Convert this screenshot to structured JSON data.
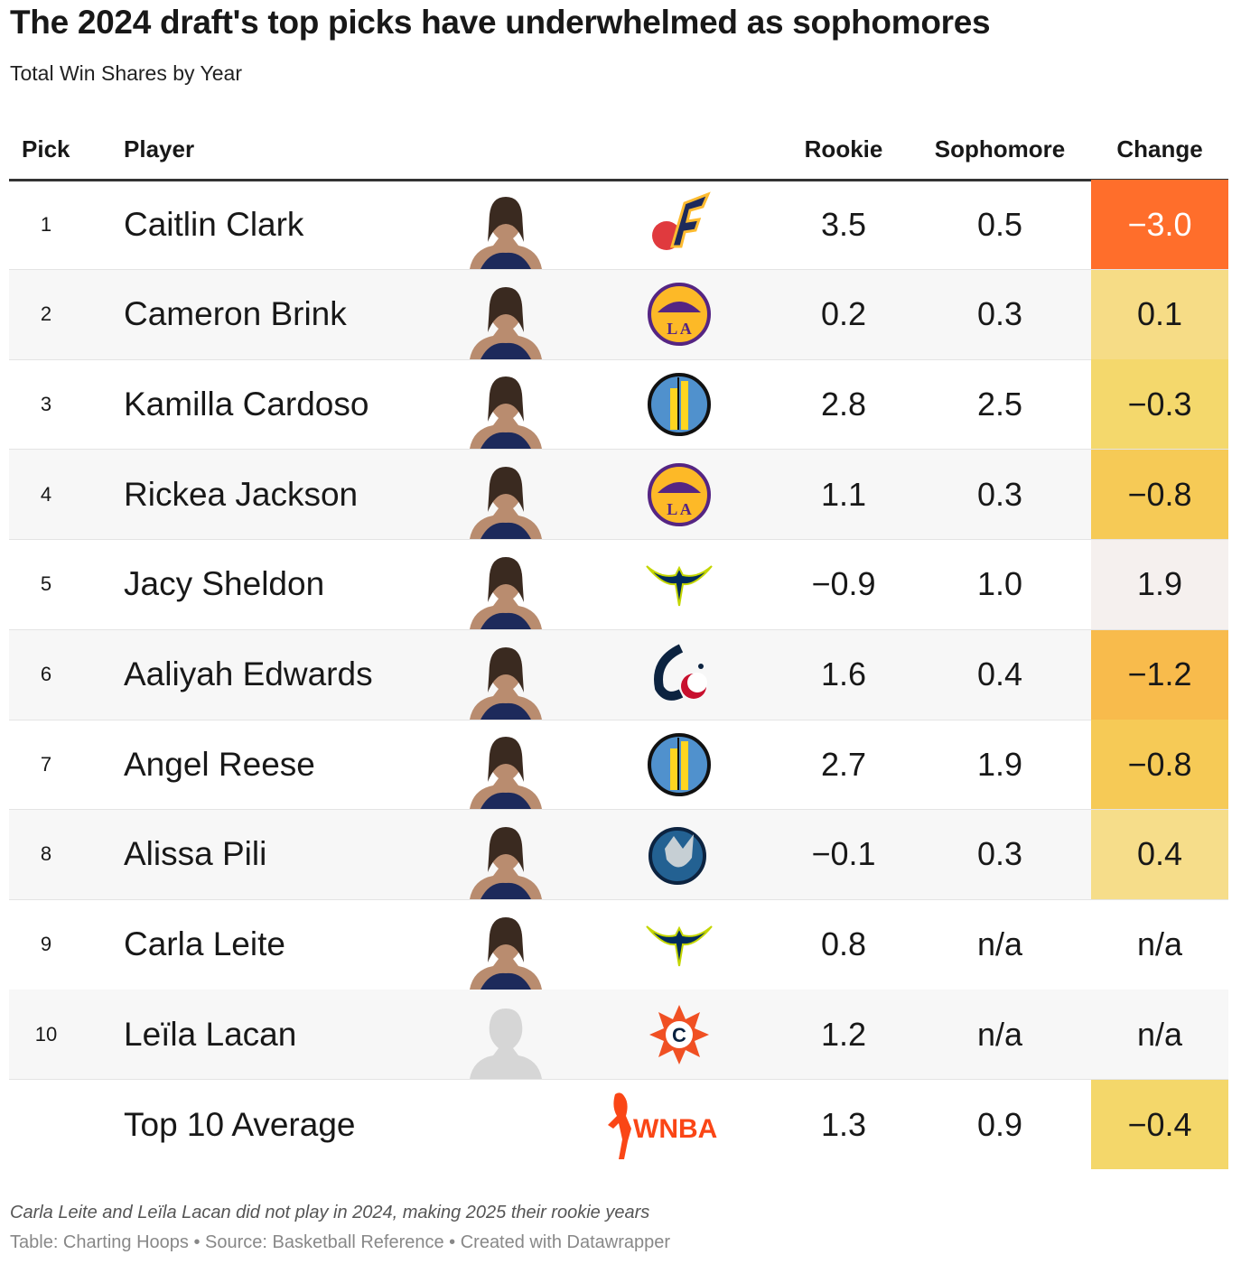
{
  "title": "The 2024 draft's top picks have underwhelmed as sophomores",
  "subtitle": "Total Win Shares by Year",
  "headers": {
    "pick": "Pick",
    "player": "Player",
    "rookie": "Rookie",
    "sophomore": "Sophomore",
    "change": "Change"
  },
  "chart_data": {
    "type": "table",
    "columns": [
      "Pick",
      "Player",
      "Rookie",
      "Sophomore",
      "Change"
    ],
    "rows": [
      {
        "pick": "1",
        "player": "Caitlin Clark",
        "team_logo": "indiana-fever-logo",
        "rookie": "3.5",
        "sophomore": "0.5",
        "change": "−3.0",
        "change_color": "#ff6e2b",
        "change_text_color": "#ffffff"
      },
      {
        "pick": "2",
        "player": "Cameron Brink",
        "team_logo": "los-angeles-sparks-logo",
        "rookie": "0.2",
        "sophomore": "0.3",
        "change": "0.1",
        "change_color": "#f6dc86",
        "change_text_color": "#181818"
      },
      {
        "pick": "3",
        "player": "Kamilla Cardoso",
        "team_logo": "chicago-sky-logo",
        "rookie": "2.8",
        "sophomore": "2.5",
        "change": "−0.3",
        "change_color": "#f4d86c",
        "change_text_color": "#181818"
      },
      {
        "pick": "4",
        "player": "Rickea Jackson",
        "team_logo": "los-angeles-sparks-logo",
        "rookie": "1.1",
        "sophomore": "0.3",
        "change": "−0.8",
        "change_color": "#f6ca56",
        "change_text_color": "#181818"
      },
      {
        "pick": "5",
        "player": "Jacy Sheldon",
        "team_logo": "dallas-wings-logo",
        "rookie": "−0.9",
        "sophomore": "1.0",
        "change": "1.9",
        "change_color": "#f5f0ee",
        "change_text_color": "#181818"
      },
      {
        "pick": "6",
        "player": "Aaliyah Edwards",
        "team_logo": "washington-mystics-logo",
        "rookie": "1.6",
        "sophomore": "0.4",
        "change": "−1.2",
        "change_color": "#f8bb4c",
        "change_text_color": "#181818"
      },
      {
        "pick": "7",
        "player": "Angel Reese",
        "team_logo": "chicago-sky-logo",
        "rookie": "2.7",
        "sophomore": "1.9",
        "change": "−0.8",
        "change_color": "#f6ca56",
        "change_text_color": "#181818"
      },
      {
        "pick": "8",
        "player": "Alissa Pili",
        "team_logo": "minnesota-lynx-logo",
        "rookie": "−0.1",
        "sophomore": "0.3",
        "change": "0.4",
        "change_color": "#f6dd8a",
        "change_text_color": "#181818"
      },
      {
        "pick": "9",
        "player": "Carla Leite",
        "team_logo": "dallas-wings-logo",
        "rookie": "0.8",
        "sophomore": "n/a",
        "change": "n/a",
        "change_color": "",
        "change_text_color": "#181818"
      },
      {
        "pick": "10",
        "player": "Leïla Lacan",
        "team_logo": "connecticut-sun-logo",
        "rookie": "1.2",
        "sophomore": "n/a",
        "change": "n/a",
        "change_color": "",
        "change_text_color": "#181818"
      },
      {
        "pick": "",
        "player": "Top 10 Average",
        "team_logo": "wnba-logo",
        "rookie": "1.3",
        "sophomore": "0.9",
        "change": "−0.4",
        "change_color": "#f4d76a",
        "change_text_color": "#181818"
      }
    ]
  },
  "wnba_logo_text": "WNBA",
  "footer": {
    "note": "Carla Leite and Leïla Lacan did not play in 2024, making 2025 their rookie years",
    "byline": "Table: Charting Hoops • Source: Basketball Reference • Created with Datawrapper"
  }
}
